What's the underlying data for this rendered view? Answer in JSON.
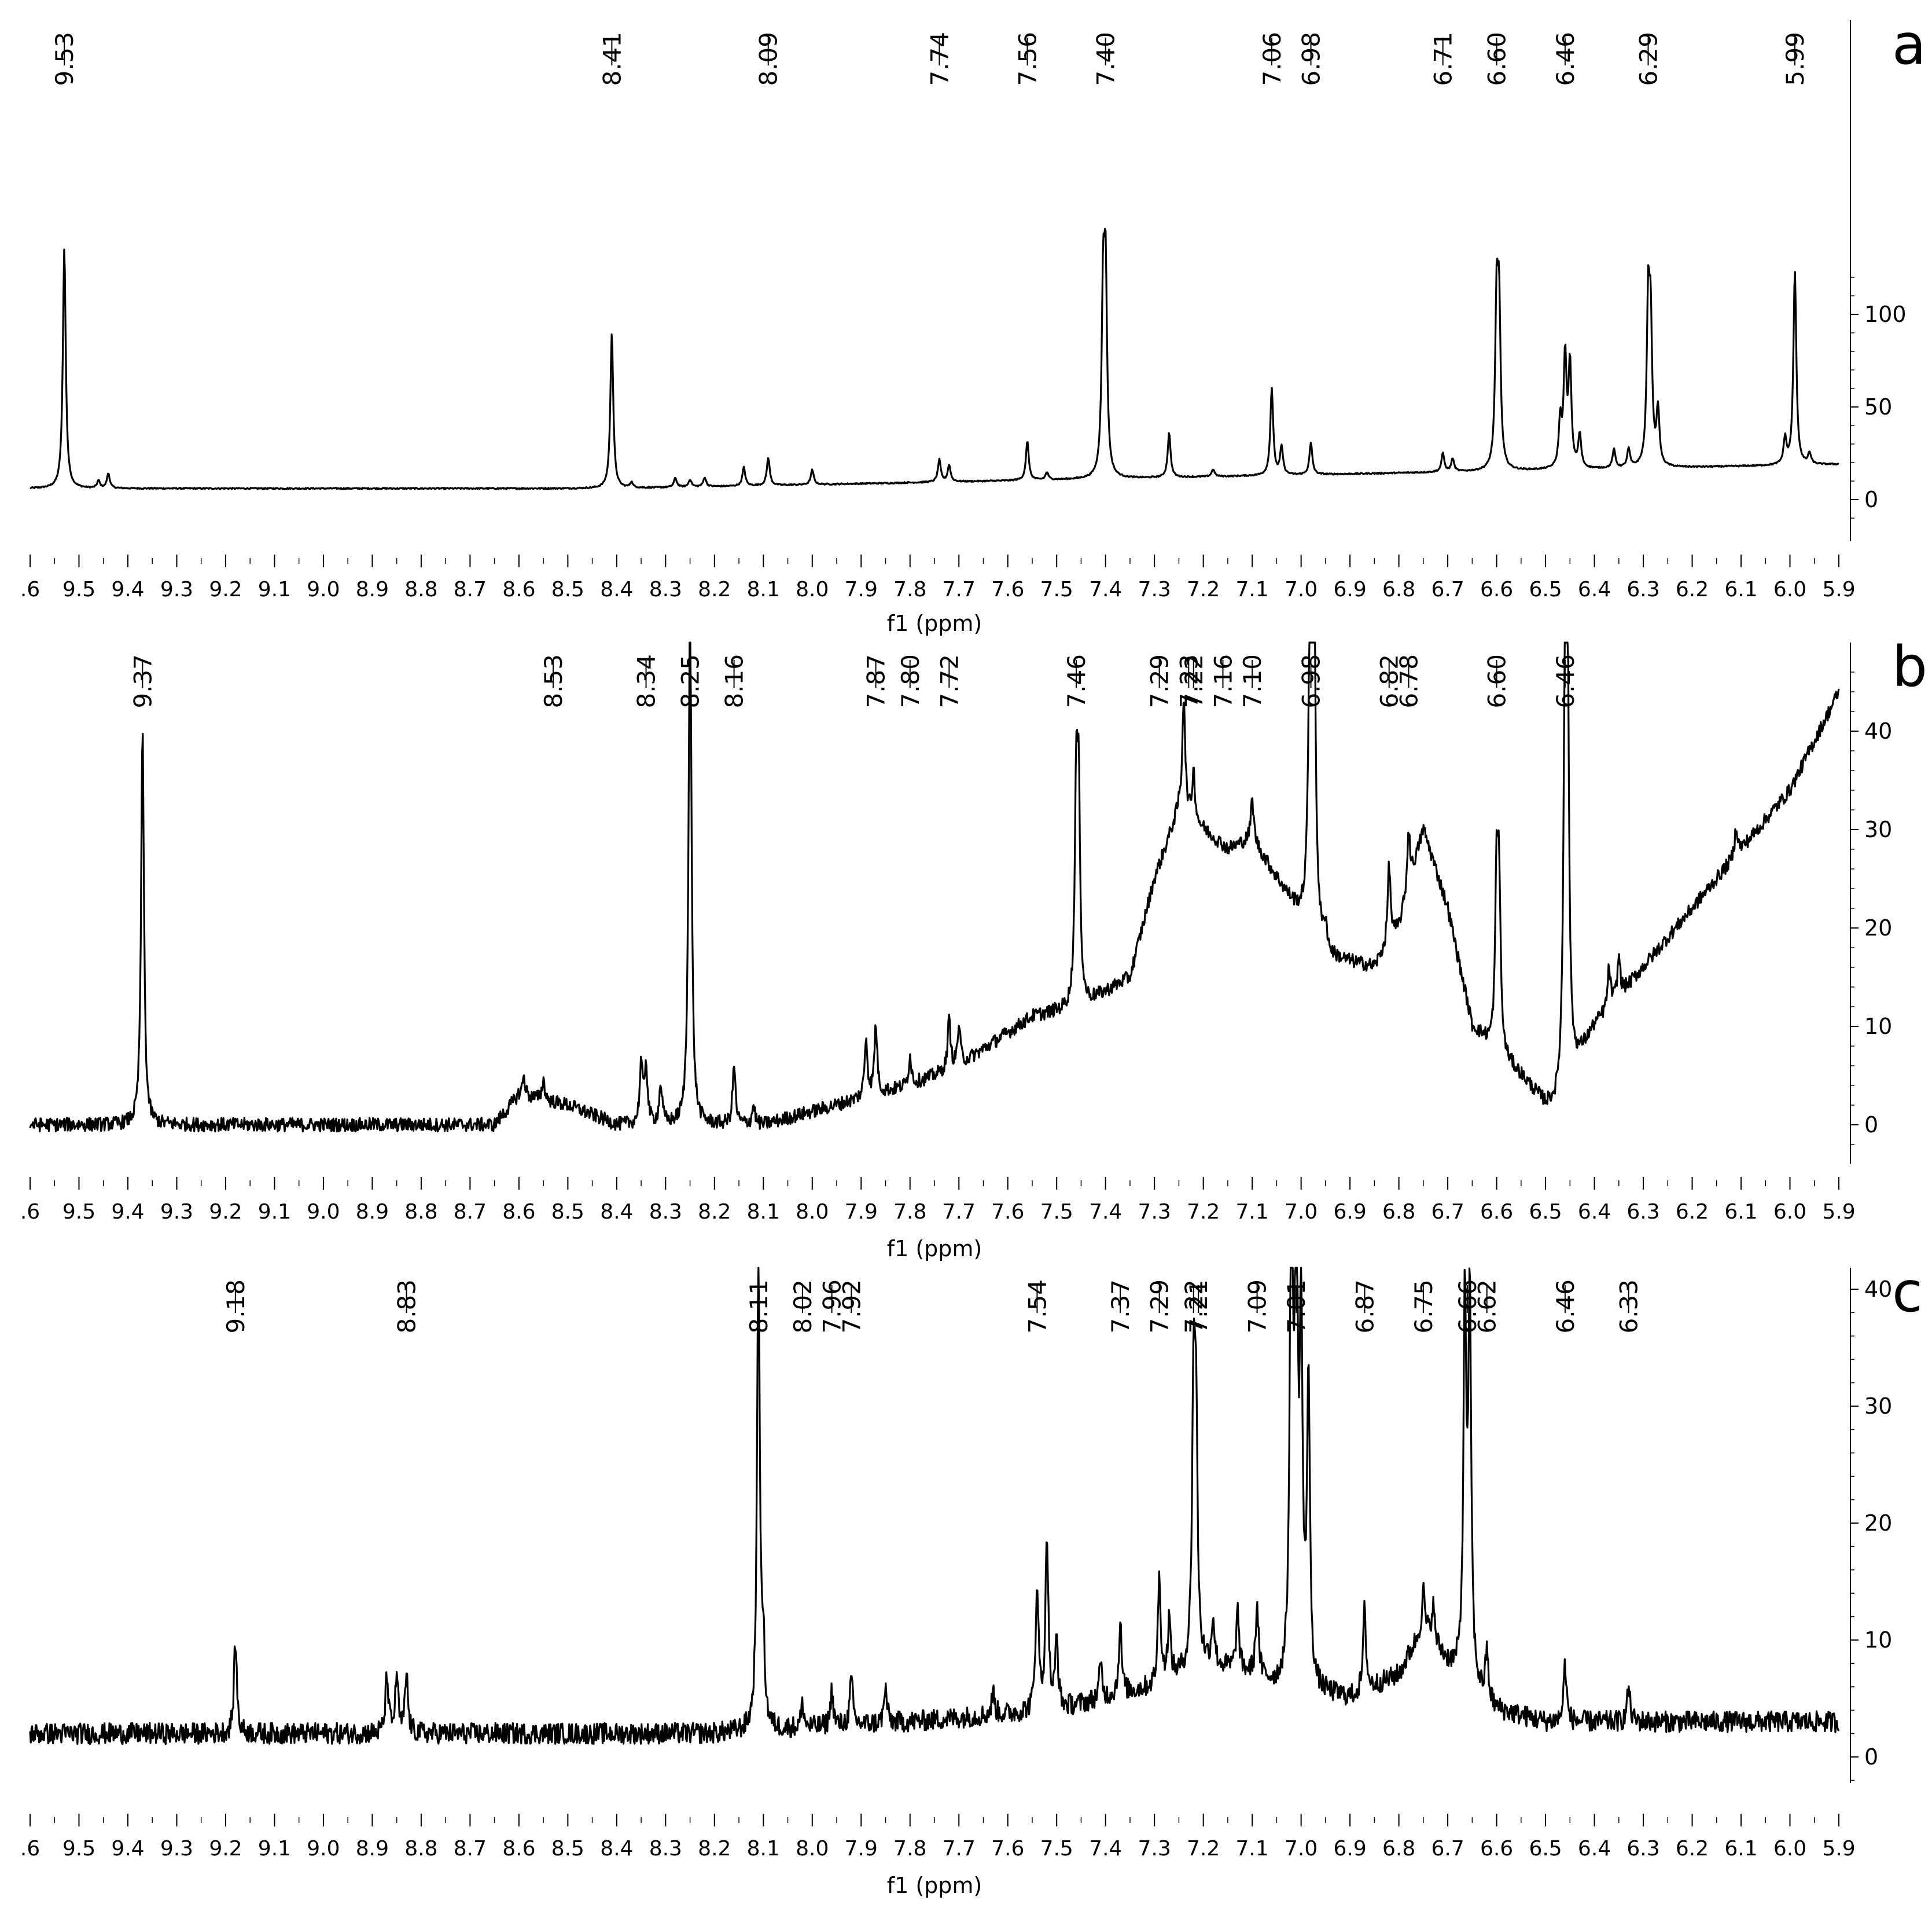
{
  "figure": {
    "panels": [
      "a",
      "b",
      "c"
    ]
  },
  "chart_data": [
    {
      "type": "line",
      "panel_label": "a",
      "xlabel": "f1 (ppm)",
      "ylabel": "",
      "xlim": [
        9.6,
        5.9
      ],
      "ylim": [
        -12,
        125
      ],
      "x_ticks": [
        "9.6",
        "9.5",
        "9.4",
        "9.3",
        "9.2",
        "9.1",
        "9.0",
        "8.9",
        "8.8",
        "8.7",
        "8.6",
        "8.5",
        "8.4",
        "8.3",
        "8.2",
        "8.1",
        "8.0",
        "7.9",
        "7.8",
        "7.7",
        "7.6",
        "7.5",
        "7.4",
        "7.3",
        "7.2",
        "7.1",
        "7.0",
        "6.9",
        "6.8",
        "6.7",
        "6.6",
        "6.5",
        "6.4",
        "6.3",
        "6.2",
        "6.1",
        "6.0",
        "5.9"
      ],
      "x_tick_labels": [
        ".6",
        "9.5",
        "9.4",
        "9.3",
        "9.2",
        "9.1",
        "9.0",
        "8.9",
        "8.8",
        "8.7",
        "8.6",
        "8.5",
        "8.4",
        "8.3",
        "8.2",
        "8.1",
        "8.0",
        "7.9",
        "7.8",
        "7.7",
        "7.6",
        "7.5",
        "7.4",
        "7.3",
        "7.2",
        "7.1",
        "7.0",
        "6.9",
        "6.8",
        "6.7",
        "6.6",
        "6.5",
        "6.4",
        "6.3",
        "6.2",
        "6.1",
        "6.0",
        "5.9"
      ],
      "y_ticks": [
        "0",
        "50",
        "100"
      ],
      "baseline": {
        "start": 6,
        "end": 19,
        "knee": 8.4
      },
      "peak_labels": [
        {
          "label": "9.53",
          "x": 9.53
        },
        {
          "label": "8.41",
          "x": 8.41
        },
        {
          "label": "8.09",
          "x": 8.09
        },
        {
          "label": "7.74",
          "x": 7.74
        },
        {
          "label": "7.56",
          "x": 7.56
        },
        {
          "label": "7.40",
          "x": 7.4
        },
        {
          "label": "7.06",
          "x": 7.06
        },
        {
          "label": "6.98",
          "x": 6.98
        },
        {
          "label": "6.71",
          "x": 6.71
        },
        {
          "label": "6.60",
          "x": 6.6
        },
        {
          "label": "6.46",
          "x": 6.46
        },
        {
          "label": "6.29",
          "x": 6.29
        },
        {
          "label": "5.99",
          "x": 5.99
        }
      ],
      "peaks": [
        {
          "x": 9.53,
          "y": 130
        },
        {
          "x": 9.44,
          "y": 8
        },
        {
          "x": 9.46,
          "y": 4
        },
        {
          "x": 8.41,
          "y": 84
        },
        {
          "x": 8.37,
          "y": 3
        },
        {
          "x": 8.28,
          "y": 5
        },
        {
          "x": 8.25,
          "y": 4
        },
        {
          "x": 8.22,
          "y": 5
        },
        {
          "x": 8.14,
          "y": 10
        },
        {
          "x": 8.09,
          "y": 15
        },
        {
          "x": 8.0,
          "y": 8
        },
        {
          "x": 7.74,
          "y": 12
        },
        {
          "x": 7.72,
          "y": 9
        },
        {
          "x": 7.56,
          "y": 21
        },
        {
          "x": 7.52,
          "y": 4
        },
        {
          "x": 7.4,
          "y": 103
        },
        {
          "x": 7.405,
          "y": 95
        },
        {
          "x": 7.27,
          "y": 24
        },
        {
          "x": 7.18,
          "y": 4
        },
        {
          "x": 7.06,
          "y": 47
        },
        {
          "x": 7.04,
          "y": 15
        },
        {
          "x": 6.98,
          "y": 17
        },
        {
          "x": 6.71,
          "y": 10
        },
        {
          "x": 6.69,
          "y": 7
        },
        {
          "x": 6.6,
          "y": 86
        },
        {
          "x": 6.595,
          "y": 82
        },
        {
          "x": 6.47,
          "y": 25
        },
        {
          "x": 6.46,
          "y": 60
        },
        {
          "x": 6.45,
          "y": 56
        },
        {
          "x": 6.43,
          "y": 18
        },
        {
          "x": 6.36,
          "y": 10
        },
        {
          "x": 6.33,
          "y": 10
        },
        {
          "x": 6.29,
          "y": 84
        },
        {
          "x": 6.285,
          "y": 72
        },
        {
          "x": 6.27,
          "y": 30
        },
        {
          "x": 6.01,
          "y": 14
        },
        {
          "x": 5.99,
          "y": 105
        },
        {
          "x": 5.96,
          "y": 6
        }
      ]
    },
    {
      "type": "line",
      "panel_label": "b",
      "xlabel": "f1 (ppm)",
      "ylabel": "",
      "xlim": [
        9.6,
        5.9
      ],
      "ylim": [
        -5,
        46
      ],
      "x_ticks": [
        "9.6",
        "9.5",
        "9.4",
        "9.3",
        "9.2",
        "9.1",
        "9.0",
        "8.9",
        "8.8",
        "8.7",
        "8.6",
        "8.5",
        "8.4",
        "8.3",
        "8.2",
        "8.1",
        "8.0",
        "7.9",
        "7.8",
        "7.7",
        "7.6",
        "7.5",
        "7.4",
        "7.3",
        "7.2",
        "7.1",
        "7.0",
        "6.9",
        "6.8",
        "6.7",
        "6.6",
        "6.5",
        "6.4",
        "6.3",
        "6.2",
        "6.1",
        "6.0",
        "5.9"
      ],
      "x_tick_labels": [
        ".6",
        "9.5",
        "9.4",
        "9.3",
        "9.2",
        "9.1",
        "9.0",
        "8.9",
        "8.8",
        "8.7",
        "8.6",
        "8.5",
        "8.4",
        "8.3",
        "8.2",
        "8.1",
        "8.0",
        "7.9",
        "7.8",
        "7.7",
        "7.6",
        "7.5",
        "7.4",
        "7.3",
        "7.2",
        "7.1",
        "7.0",
        "6.9",
        "6.8",
        "6.7",
        "6.6",
        "6.5",
        "6.4",
        "6.3",
        "6.2",
        "6.1",
        "6.0",
        "5.9"
      ],
      "y_ticks": [
        "0",
        "10",
        "20",
        "30",
        "40"
      ],
      "baseline_points": [
        [
          9.6,
          0
        ],
        [
          8.65,
          0
        ],
        [
          8.6,
          3
        ],
        [
          8.5,
          2
        ],
        [
          8.4,
          0
        ],
        [
          8.1,
          0
        ],
        [
          7.95,
          2
        ],
        [
          7.8,
          4
        ],
        [
          7.7,
          6
        ],
        [
          7.55,
          11
        ],
        [
          7.45,
          12
        ],
        [
          7.35,
          15
        ],
        [
          7.3,
          25
        ],
        [
          7.25,
          32
        ],
        [
          7.2,
          30
        ],
        [
          7.15,
          28
        ],
        [
          7.1,
          29
        ],
        [
          7.0,
          21
        ],
        [
          6.95,
          17
        ],
        [
          6.85,
          16
        ],
        [
          6.8,
          20
        ],
        [
          6.75,
          30
        ],
        [
          6.7,
          22
        ],
        [
          6.65,
          10
        ],
        [
          6.55,
          5
        ],
        [
          6.5,
          2
        ],
        [
          6.48,
          2
        ],
        [
          6.4,
          10
        ],
        [
          6.3,
          16
        ],
        [
          6.2,
          22
        ],
        [
          6.1,
          28
        ],
        [
          6.0,
          34
        ],
        [
          5.9,
          44
        ]
      ],
      "peak_labels": [
        {
          "label": "9.37",
          "x": 9.37
        },
        {
          "label": "8.53",
          "x": 8.53
        },
        {
          "label": "8.34",
          "x": 8.34
        },
        {
          "label": "8.25",
          "x": 8.25
        },
        {
          "label": "8.16",
          "x": 8.16
        },
        {
          "label": "7.87",
          "x": 7.87
        },
        {
          "label": "7.80",
          "x": 7.8
        },
        {
          "label": "7.72",
          "x": 7.72
        },
        {
          "label": "7.46",
          "x": 7.46
        },
        {
          "label": "7.29",
          "x": 7.29
        },
        {
          "label": "7.23",
          "x": 7.23
        },
        {
          "label": "7.22",
          "x": 7.22
        },
        {
          "label": "7.16",
          "x": 7.16
        },
        {
          "label": "7.10",
          "x": 7.1
        },
        {
          "label": "6.98",
          "x": 6.98
        },
        {
          "label": "6.82",
          "x": 6.82
        },
        {
          "label": "6.78",
          "x": 6.78
        },
        {
          "label": "6.60",
          "x": 6.6
        },
        {
          "label": "6.46",
          "x": 6.46
        }
      ],
      "peaks": [
        {
          "x": 9.37,
          "y": 40
        },
        {
          "x": 8.59,
          "y": 2
        },
        {
          "x": 8.55,
          "y": 2
        },
        {
          "x": 8.35,
          "y": 6
        },
        {
          "x": 8.34,
          "y": 6
        },
        {
          "x": 8.31,
          "y": 4
        },
        {
          "x": 8.25,
          "y": 55
        },
        {
          "x": 8.16,
          "y": 6
        },
        {
          "x": 8.12,
          "y": 2
        },
        {
          "x": 7.89,
          "y": 6
        },
        {
          "x": 7.87,
          "y": 7
        },
        {
          "x": 7.8,
          "y": 3
        },
        {
          "x": 7.72,
          "y": 5
        },
        {
          "x": 7.7,
          "y": 4
        },
        {
          "x": 7.46,
          "y": 21
        },
        {
          "x": 7.455,
          "y": 20
        },
        {
          "x": 7.24,
          "y": 12
        },
        {
          "x": 7.22,
          "y": 5
        },
        {
          "x": 7.1,
          "y": 4
        },
        {
          "x": 6.98,
          "y": 50
        },
        {
          "x": 6.975,
          "y": 45
        },
        {
          "x": 6.95,
          "y": 3
        },
        {
          "x": 6.82,
          "y": 8
        },
        {
          "x": 6.78,
          "y": 6
        },
        {
          "x": 6.6,
          "y": 17
        },
        {
          "x": 6.595,
          "y": 16
        },
        {
          "x": 6.46,
          "y": 40
        },
        {
          "x": 6.455,
          "y": 38
        },
        {
          "x": 6.37,
          "y": 4
        },
        {
          "x": 6.35,
          "y": 4
        },
        {
          "x": 6.11,
          "y": 3
        }
      ]
    },
    {
      "type": "line",
      "panel_label": "c",
      "xlabel": "f1 (ppm)",
      "ylabel": "",
      "xlim": [
        9.6,
        5.9
      ],
      "ylim": [
        -5,
        42
      ],
      "x_ticks": [
        "9.6",
        "9.5",
        "9.4",
        "9.3",
        "9.2",
        "9.1",
        "9.0",
        "8.9",
        "8.8",
        "8.7",
        "8.6",
        "8.5",
        "8.4",
        "8.3",
        "8.2",
        "8.1",
        "8.0",
        "7.9",
        "7.8",
        "7.7",
        "7.6",
        "7.5",
        "7.4",
        "7.3",
        "7.2",
        "7.1",
        "7.0",
        "6.9",
        "6.8",
        "6.7",
        "6.6",
        "6.5",
        "6.4",
        "6.3",
        "6.2",
        "6.1",
        "6.0",
        "5.9"
      ],
      "x_tick_labels": [
        ".6",
        "9.5",
        "9.4",
        "9.3",
        "9.2",
        "9.1",
        "9.0",
        "8.9",
        "8.8",
        "8.7",
        "8.6",
        "8.5",
        "8.4",
        "8.3",
        "8.2",
        "8.1",
        "8.0",
        "7.9",
        "7.8",
        "7.7",
        "7.6",
        "7.5",
        "7.4",
        "7.3",
        "7.2",
        "7.1",
        "7.0",
        "6.9",
        "6.8",
        "6.7",
        "6.6",
        "6.5",
        "6.4",
        "6.3",
        "6.2",
        "6.1",
        "6.0",
        "5.9"
      ],
      "y_ticks": [
        "0",
        "10",
        "20",
        "30",
        "40"
      ],
      "baseline_points": [
        [
          9.6,
          2
        ],
        [
          8.2,
          2
        ],
        [
          7.8,
          3
        ],
        [
          7.5,
          4
        ],
        [
          7.3,
          6
        ],
        [
          7.2,
          8
        ],
        [
          7.1,
          7
        ],
        [
          7.05,
          6
        ],
        [
          6.9,
          5
        ],
        [
          6.8,
          7
        ],
        [
          6.75,
          11
        ],
        [
          6.7,
          8
        ],
        [
          6.6,
          4
        ],
        [
          6.5,
          3
        ],
        [
          5.9,
          3
        ]
      ],
      "peak_labels": [
        {
          "label": "9.18",
          "x": 9.18
        },
        {
          "label": "8.83",
          "x": 8.83
        },
        {
          "label": "8.11",
          "x": 8.11
        },
        {
          "label": "8.02",
          "x": 8.02
        },
        {
          "label": "7.96",
          "x": 7.96
        },
        {
          "label": "7.92",
          "x": 7.92
        },
        {
          "label": "7.54",
          "x": 7.54
        },
        {
          "label": "7.37",
          "x": 7.37
        },
        {
          "label": "7.29",
          "x": 7.29
        },
        {
          "label": "7.22",
          "x": 7.22
        },
        {
          "label": "7.21",
          "x": 7.21
        },
        {
          "label": "7.09",
          "x": 7.09
        },
        {
          "label": "7.01",
          "x": 7.01
        },
        {
          "label": "6.87",
          "x": 6.87
        },
        {
          "label": "6.75",
          "x": 6.75
        },
        {
          "label": "6.66",
          "x": 6.66
        },
        {
          "label": "6.62",
          "x": 6.62
        },
        {
          "label": "6.46",
          "x": 6.46
        },
        {
          "label": "6.33",
          "x": 6.33
        }
      ],
      "peaks": [
        {
          "x": 9.18,
          "y": 8
        },
        {
          "x": 8.87,
          "y": 5
        },
        {
          "x": 8.85,
          "y": 5
        },
        {
          "x": 8.83,
          "y": 5
        },
        {
          "x": 8.11,
          "y": 40
        },
        {
          "x": 8.1,
          "y": 6
        },
        {
          "x": 8.02,
          "y": 2
        },
        {
          "x": 7.96,
          "y": 3
        },
        {
          "x": 7.92,
          "y": 4
        },
        {
          "x": 7.85,
          "y": 3
        },
        {
          "x": 7.63,
          "y": 2
        },
        {
          "x": 7.54,
          "y": 11
        },
        {
          "x": 7.52,
          "y": 15
        },
        {
          "x": 7.5,
          "y": 6
        },
        {
          "x": 7.41,
          "y": 3
        },
        {
          "x": 7.37,
          "y": 6
        },
        {
          "x": 7.29,
          "y": 9
        },
        {
          "x": 7.27,
          "y": 5
        },
        {
          "x": 7.22,
          "y": 23
        },
        {
          "x": 7.215,
          "y": 20
        },
        {
          "x": 7.18,
          "y": 4
        },
        {
          "x": 7.13,
          "y": 5
        },
        {
          "x": 7.09,
          "y": 6
        },
        {
          "x": 7.02,
          "y": 45
        },
        {
          "x": 7.01,
          "y": 40
        },
        {
          "x": 7.0,
          "y": 30
        },
        {
          "x": 6.985,
          "y": 26
        },
        {
          "x": 6.87,
          "y": 7
        },
        {
          "x": 6.75,
          "y": 3
        },
        {
          "x": 6.73,
          "y": 3
        },
        {
          "x": 6.665,
          "y": 32
        },
        {
          "x": 6.655,
          "y": 32
        },
        {
          "x": 6.62,
          "y": 4
        },
        {
          "x": 6.46,
          "y": 5
        },
        {
          "x": 6.33,
          "y": 3
        }
      ]
    }
  ]
}
